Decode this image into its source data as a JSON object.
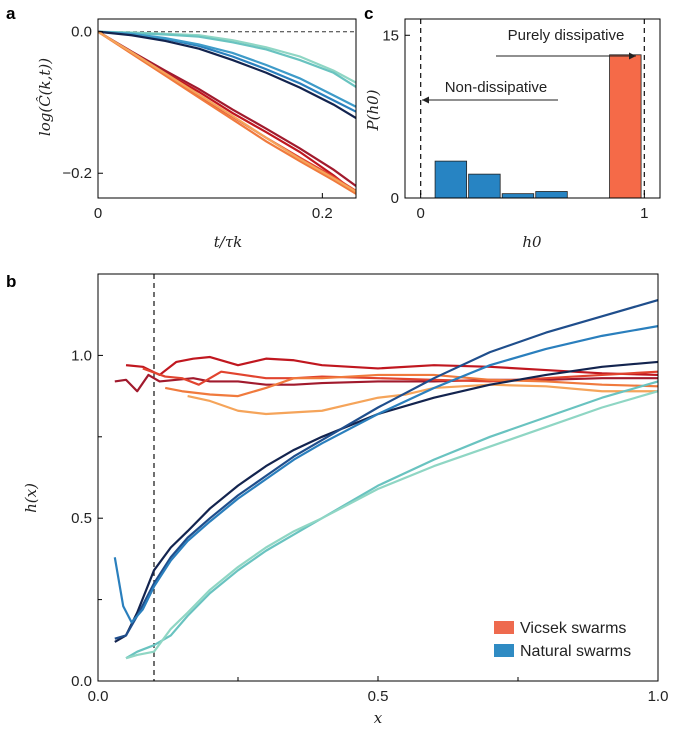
{
  "colors": {
    "vicsek": [
      "#c0171f",
      "#a11a2d",
      "#e1442f",
      "#f07a3d",
      "#f5a45a",
      "#f8b968"
    ],
    "natural": [
      "#13244f",
      "#1f4e8c",
      "#2a7fbd",
      "#3e9bc9",
      "#69c3c0",
      "#8fd6c4"
    ],
    "vicsek_legend": "#ee6a4e",
    "natural_legend": "#2f8bc3",
    "bar_natural": "#2784c3",
    "bar_vicsek": "#f56a48"
  },
  "panels": {
    "a": "a",
    "b": "b",
    "c": "c"
  },
  "chart_data": [
    {
      "id": "a",
      "type": "line",
      "ylabel": "log(Ĉ(k,t))",
      "xlabel": "t/τk",
      "xlim": [
        0,
        0.23
      ],
      "ylim": [
        -0.235,
        0.018
      ],
      "xticks": [
        0,
        0.2
      ],
      "xtick_labels": [
        "0",
        "0.2"
      ],
      "yticks": [
        0.0,
        -0.2
      ],
      "ytick_labels": [
        "0.0",
        "−0.2"
      ],
      "reference_line_y": 0,
      "series": [
        {
          "group": "natural",
          "shade": 5,
          "x": [
            0,
            0.03,
            0.06,
            0.09,
            0.12,
            0.15,
            0.18,
            0.21,
            0.23
          ],
          "y": [
            0,
            -0.001,
            -0.003,
            -0.005,
            -0.012,
            -0.022,
            -0.035,
            -0.055,
            -0.072
          ]
        },
        {
          "group": "natural",
          "shade": 4,
          "x": [
            0,
            0.03,
            0.06,
            0.09,
            0.12,
            0.15,
            0.18,
            0.21,
            0.23
          ],
          "y": [
            0,
            -0.002,
            -0.004,
            -0.007,
            -0.015,
            -0.025,
            -0.04,
            -0.058,
            -0.078
          ]
        },
        {
          "group": "natural",
          "shade": 2,
          "x": [
            0,
            0.03,
            0.06,
            0.09,
            0.12,
            0.15,
            0.18,
            0.21,
            0.23
          ],
          "y": [
            0,
            -0.004,
            -0.01,
            -0.02,
            -0.035,
            -0.053,
            -0.073,
            -0.097,
            -0.113
          ]
        },
        {
          "group": "natural",
          "shade": 3,
          "x": [
            0,
            0.03,
            0.06,
            0.09,
            0.12,
            0.15,
            0.18,
            0.21,
            0.23
          ],
          "y": [
            0,
            -0.003,
            -0.009,
            -0.018,
            -0.03,
            -0.047,
            -0.066,
            -0.09,
            -0.106
          ]
        },
        {
          "group": "natural",
          "shade": 0,
          "x": [
            0,
            0.03,
            0.06,
            0.09,
            0.12,
            0.15,
            0.18,
            0.21,
            0.23
          ],
          "y": [
            0,
            -0.005,
            -0.013,
            -0.024,
            -0.04,
            -0.058,
            -0.079,
            -0.103,
            -0.122
          ]
        },
        {
          "group": "vicsek",
          "shade": 0,
          "x": [
            0,
            0.03,
            0.06,
            0.09,
            0.12,
            0.15,
            0.18,
            0.21,
            0.23
          ],
          "y": [
            0,
            -0.029,
            -0.058,
            -0.085,
            -0.115,
            -0.142,
            -0.17,
            -0.203,
            -0.228
          ]
        },
        {
          "group": "vicsek",
          "shade": 1,
          "x": [
            0,
            0.03,
            0.06,
            0.09,
            0.12,
            0.15,
            0.18,
            0.21,
            0.23
          ],
          "y": [
            0,
            -0.028,
            -0.055,
            -0.081,
            -0.11,
            -0.137,
            -0.165,
            -0.195,
            -0.218
          ]
        },
        {
          "group": "vicsek",
          "shade": 2,
          "x": [
            0,
            0.03,
            0.06,
            0.09,
            0.12,
            0.15,
            0.18,
            0.21,
            0.23
          ],
          "y": [
            0,
            -0.03,
            -0.06,
            -0.09,
            -0.12,
            -0.15,
            -0.178,
            -0.205,
            -0.225
          ]
        },
        {
          "group": "vicsek",
          "shade": 3,
          "x": [
            0,
            0.03,
            0.06,
            0.09,
            0.12,
            0.15,
            0.18,
            0.21,
            0.23
          ],
          "y": [
            0,
            -0.031,
            -0.062,
            -0.093,
            -0.124,
            -0.155,
            -0.183,
            -0.21,
            -0.229
          ]
        },
        {
          "group": "vicsek",
          "shade": 4,
          "x": [
            0,
            0.03,
            0.06,
            0.09,
            0.12,
            0.15,
            0.18,
            0.21,
            0.23
          ],
          "y": [
            0,
            -0.029,
            -0.059,
            -0.089,
            -0.119,
            -0.15,
            -0.18,
            -0.207,
            -0.226
          ]
        }
      ]
    },
    {
      "id": "c",
      "type": "bar",
      "ylabel": "P(h0)",
      "xlabel": "h0",
      "xlim": [
        -0.07,
        1.07
      ],
      "ylim": [
        0,
        16.5
      ],
      "xticks": [
        0,
        1
      ],
      "xtick_labels": [
        "0",
        "1"
      ],
      "yticks": [
        0,
        15
      ],
      "ytick_labels": [
        "0",
        "15"
      ],
      "dashed_x": [
        0,
        1
      ],
      "bars": [
        {
          "group": "natural",
          "x0": 0.06,
          "x1": 0.21,
          "value": 3.4
        },
        {
          "group": "natural",
          "x0": 0.21,
          "x1": 0.36,
          "value": 2.2
        },
        {
          "group": "natural",
          "x0": 0.36,
          "x1": 0.51,
          "value": 0.4
        },
        {
          "group": "natural",
          "x0": 0.51,
          "x1": 0.66,
          "value": 0.6
        },
        {
          "group": "vicsek",
          "x0": 0.84,
          "x1": 0.99,
          "value": 13.2
        }
      ],
      "annotations": {
        "left": "Non-dissipative",
        "right": "Purely dissipative"
      }
    },
    {
      "id": "b",
      "type": "line",
      "ylabel": "h(x)",
      "xlabel": "x",
      "xlim": [
        0,
        1.0
      ],
      "ylim": [
        0,
        1.25
      ],
      "xticks": [
        0,
        0.5,
        1.0
      ],
      "xtick_labels": [
        "0.0",
        "0.5",
        "1.0"
      ],
      "yticks": [
        0,
        0.5,
        1.0
      ],
      "ytick_labels": [
        "0.0",
        "0.5",
        "1.0"
      ],
      "dashed_x": 0.1,
      "legend": [
        {
          "label": "Vicsek swarms",
          "group": "vicsek"
        },
        {
          "label": "Natural swarms",
          "group": "natural"
        }
      ],
      "series": [
        {
          "group": "vicsek",
          "shade": 0,
          "x": [
            0.05,
            0.08,
            0.11,
            0.14,
            0.17,
            0.2,
            0.25,
            0.3,
            0.35,
            0.4,
            0.5,
            0.6,
            0.7,
            0.8,
            0.9,
            1.0
          ],
          "y": [
            0.97,
            0.965,
            0.94,
            0.98,
            0.99,
            0.995,
            0.97,
            0.99,
            0.985,
            0.97,
            0.96,
            0.97,
            0.965,
            0.955,
            0.945,
            0.94
          ]
        },
        {
          "group": "vicsek",
          "shade": 1,
          "x": [
            0.03,
            0.05,
            0.07,
            0.09,
            0.11,
            0.14,
            0.17,
            0.2,
            0.25,
            0.3,
            0.35,
            0.4,
            0.5,
            0.6,
            0.7,
            0.8,
            0.9,
            1.0
          ],
          "y": [
            0.92,
            0.925,
            0.89,
            0.94,
            0.92,
            0.925,
            0.93,
            0.92,
            0.92,
            0.91,
            0.91,
            0.915,
            0.92,
            0.92,
            0.925,
            0.925,
            0.93,
            0.93
          ]
        },
        {
          "group": "vicsek",
          "shade": 2,
          "x": [
            0.08,
            0.12,
            0.15,
            0.18,
            0.22,
            0.26,
            0.3,
            0.35,
            0.4,
            0.5,
            0.6,
            0.7,
            0.8,
            0.9,
            1.0
          ],
          "y": [
            0.96,
            0.935,
            0.93,
            0.91,
            0.95,
            0.94,
            0.93,
            0.93,
            0.935,
            0.93,
            0.925,
            0.92,
            0.93,
            0.94,
            0.95
          ]
        },
        {
          "group": "vicsek",
          "shade": 3,
          "x": [
            0.12,
            0.15,
            0.2,
            0.25,
            0.3,
            0.35,
            0.4,
            0.45,
            0.5,
            0.6,
            0.7,
            0.8,
            0.9,
            1.0
          ],
          "y": [
            0.9,
            0.89,
            0.88,
            0.875,
            0.9,
            0.93,
            0.93,
            0.935,
            0.94,
            0.94,
            0.925,
            0.92,
            0.91,
            0.905
          ]
        },
        {
          "group": "vicsek",
          "shade": 4,
          "x": [
            0.16,
            0.2,
            0.25,
            0.3,
            0.35,
            0.4,
            0.45,
            0.5,
            0.55,
            0.6,
            0.7,
            0.8,
            0.9,
            1.0
          ],
          "y": [
            0.875,
            0.86,
            0.83,
            0.82,
            0.825,
            0.83,
            0.85,
            0.87,
            0.88,
            0.9,
            0.91,
            0.905,
            0.89,
            0.89
          ]
        },
        {
          "group": "natural",
          "shade": 0,
          "x": [
            0.03,
            0.05,
            0.07,
            0.1,
            0.13,
            0.16,
            0.2,
            0.25,
            0.3,
            0.35,
            0.4,
            0.5,
            0.6,
            0.7,
            0.8,
            0.9,
            1.0
          ],
          "y": [
            0.12,
            0.14,
            0.21,
            0.34,
            0.41,
            0.46,
            0.53,
            0.6,
            0.66,
            0.71,
            0.75,
            0.82,
            0.87,
            0.91,
            0.94,
            0.965,
            0.98
          ]
        },
        {
          "group": "natural",
          "shade": 1,
          "x": [
            0.03,
            0.05,
            0.07,
            0.1,
            0.13,
            0.16,
            0.2,
            0.25,
            0.3,
            0.35,
            0.4,
            0.5,
            0.6,
            0.7,
            0.8,
            0.9,
            1.0
          ],
          "y": [
            0.13,
            0.14,
            0.2,
            0.3,
            0.38,
            0.44,
            0.5,
            0.57,
            0.63,
            0.69,
            0.74,
            0.84,
            0.93,
            1.01,
            1.07,
            1.12,
            1.17
          ]
        },
        {
          "group": "natural",
          "shade": 2,
          "x": [
            0.03,
            0.045,
            0.06,
            0.08,
            0.1,
            0.13,
            0.16,
            0.2,
            0.25,
            0.3,
            0.35,
            0.4,
            0.5,
            0.6,
            0.7,
            0.8,
            0.9,
            1.0
          ],
          "y": [
            0.38,
            0.23,
            0.18,
            0.22,
            0.29,
            0.37,
            0.43,
            0.49,
            0.56,
            0.62,
            0.68,
            0.73,
            0.82,
            0.9,
            0.97,
            1.02,
            1.06,
            1.09
          ]
        },
        {
          "group": "natural",
          "shade": 4,
          "x": [
            0.05,
            0.07,
            0.1,
            0.13,
            0.16,
            0.2,
            0.25,
            0.3,
            0.35,
            0.4,
            0.5,
            0.6,
            0.7,
            0.8,
            0.9,
            1.0
          ],
          "y": [
            0.07,
            0.09,
            0.11,
            0.14,
            0.2,
            0.27,
            0.34,
            0.4,
            0.45,
            0.5,
            0.6,
            0.68,
            0.75,
            0.81,
            0.87,
            0.92
          ]
        },
        {
          "group": "natural",
          "shade": 5,
          "x": [
            0.05,
            0.07,
            0.1,
            0.13,
            0.16,
            0.2,
            0.25,
            0.3,
            0.35,
            0.4,
            0.5,
            0.6,
            0.7,
            0.8,
            0.9,
            1.0
          ],
          "y": [
            0.07,
            0.08,
            0.09,
            0.16,
            0.21,
            0.28,
            0.35,
            0.41,
            0.46,
            0.5,
            0.59,
            0.66,
            0.72,
            0.78,
            0.84,
            0.89
          ]
        }
      ]
    }
  ]
}
